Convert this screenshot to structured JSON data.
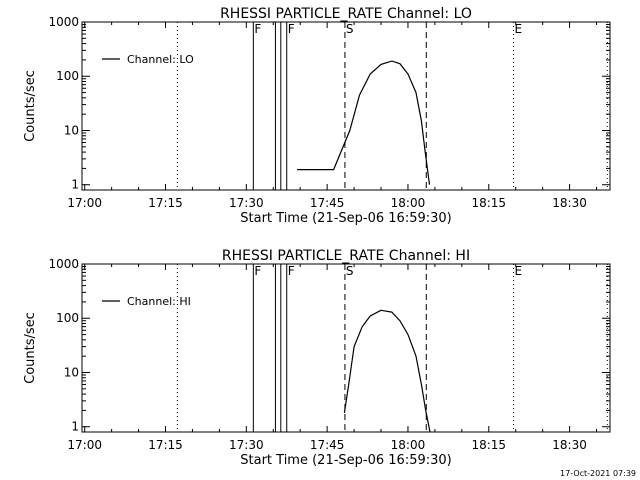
{
  "footer": {
    "timestamp": "17-Oct-2021 07:39"
  },
  "chart_data": [
    {
      "type": "line",
      "title": "RHESSI PARTICLE_RATE Channel: LO",
      "xlabel": "Start Time (21-Sep-06 16:59:30)",
      "ylabel": "Counts/sec",
      "yscale": "log",
      "xlim": [
        -0.5,
        97.5
      ],
      "ylim": [
        0.8,
        1000
      ],
      "x_ticks": [
        {
          "v": 0,
          "label": "17:00"
        },
        {
          "v": 15,
          "label": "17:15"
        },
        {
          "v": 30,
          "label": "17:30"
        },
        {
          "v": 45,
          "label": "17:45"
        },
        {
          "v": 60,
          "label": "18:00"
        },
        {
          "v": 75,
          "label": "18:15"
        },
        {
          "v": 90,
          "label": "18:30"
        }
      ],
      "y_ticks": [
        {
          "v": 1,
          "label": "1"
        },
        {
          "v": 10,
          "label": "10"
        },
        {
          "v": 100,
          "label": "100"
        },
        {
          "v": 1000,
          "label": "1000"
        }
      ],
      "legend": {
        "label": "Channel: LO",
        "placement": "top-left"
      },
      "markers": [
        {
          "x": 17.2,
          "style": "dotted",
          "label": ""
        },
        {
          "x": 31.3,
          "style": "solid",
          "label": "F"
        },
        {
          "x": 35.4,
          "style": "solid",
          "label": ""
        },
        {
          "x": 36.4,
          "style": "solid",
          "label": ""
        },
        {
          "x": 37.5,
          "style": "solid",
          "label": "F"
        },
        {
          "x": 48.3,
          "style": "dashed",
          "label": "S"
        },
        {
          "x": 63.4,
          "style": "dashed",
          "label": ""
        },
        {
          "x": 79.6,
          "style": "dotted",
          "label": "E"
        },
        {
          "x": 97.0,
          "style": "dotted",
          "label": ""
        }
      ],
      "series": [
        {
          "name": "Channel: LO",
          "x": [
            39.4,
            46.2,
            49.2,
            51.0,
            53.0,
            55.0,
            57.0,
            58.5,
            60.0,
            61.5,
            62.5,
            63.2,
            64.0
          ],
          "values": [
            1.9,
            1.9,
            10,
            45,
            110,
            165,
            190,
            170,
            110,
            50,
            15,
            4,
            1
          ]
        }
      ]
    },
    {
      "type": "line",
      "title": "RHESSI PARTICLE_RATE Channel: HI",
      "xlabel": "Start Time (21-Sep-06 16:59:30)",
      "ylabel": "Counts/sec",
      "yscale": "log",
      "xlim": [
        -0.5,
        97.5
      ],
      "ylim": [
        0.8,
        1000
      ],
      "x_ticks": [
        {
          "v": 0,
          "label": "17:00"
        },
        {
          "v": 15,
          "label": "17:15"
        },
        {
          "v": 30,
          "label": "17:30"
        },
        {
          "v": 45,
          "label": "17:45"
        },
        {
          "v": 60,
          "label": "18:00"
        },
        {
          "v": 75,
          "label": "18:15"
        },
        {
          "v": 90,
          "label": "18:30"
        }
      ],
      "y_ticks": [
        {
          "v": 1,
          "label": "1"
        },
        {
          "v": 10,
          "label": "10"
        },
        {
          "v": 100,
          "label": "100"
        },
        {
          "v": 1000,
          "label": "1000"
        }
      ],
      "legend": {
        "label": "Channel: HI",
        "placement": "top-left"
      },
      "markers": [
        {
          "x": 17.2,
          "style": "dotted",
          "label": ""
        },
        {
          "x": 31.3,
          "style": "solid",
          "label": "F"
        },
        {
          "x": 35.4,
          "style": "solid",
          "label": ""
        },
        {
          "x": 36.4,
          "style": "solid",
          "label": ""
        },
        {
          "x": 37.5,
          "style": "solid",
          "label": "F"
        },
        {
          "x": 48.3,
          "style": "dashed",
          "label": "S"
        },
        {
          "x": 63.4,
          "style": "dashed",
          "label": ""
        },
        {
          "x": 79.6,
          "style": "dotted",
          "label": "E"
        },
        {
          "x": 97.0,
          "style": "dotted",
          "label": ""
        }
      ],
      "series": [
        {
          "name": "Channel: HI",
          "x": [
            48.2,
            49.0,
            50.0,
            51.5,
            53.0,
            55.0,
            57.0,
            58.5,
            60.0,
            61.5,
            62.5,
            63.3,
            64.1
          ],
          "values": [
            1.8,
            6,
            30,
            70,
            110,
            140,
            130,
            90,
            50,
            20,
            6,
            2,
            0.8
          ]
        }
      ]
    }
  ]
}
